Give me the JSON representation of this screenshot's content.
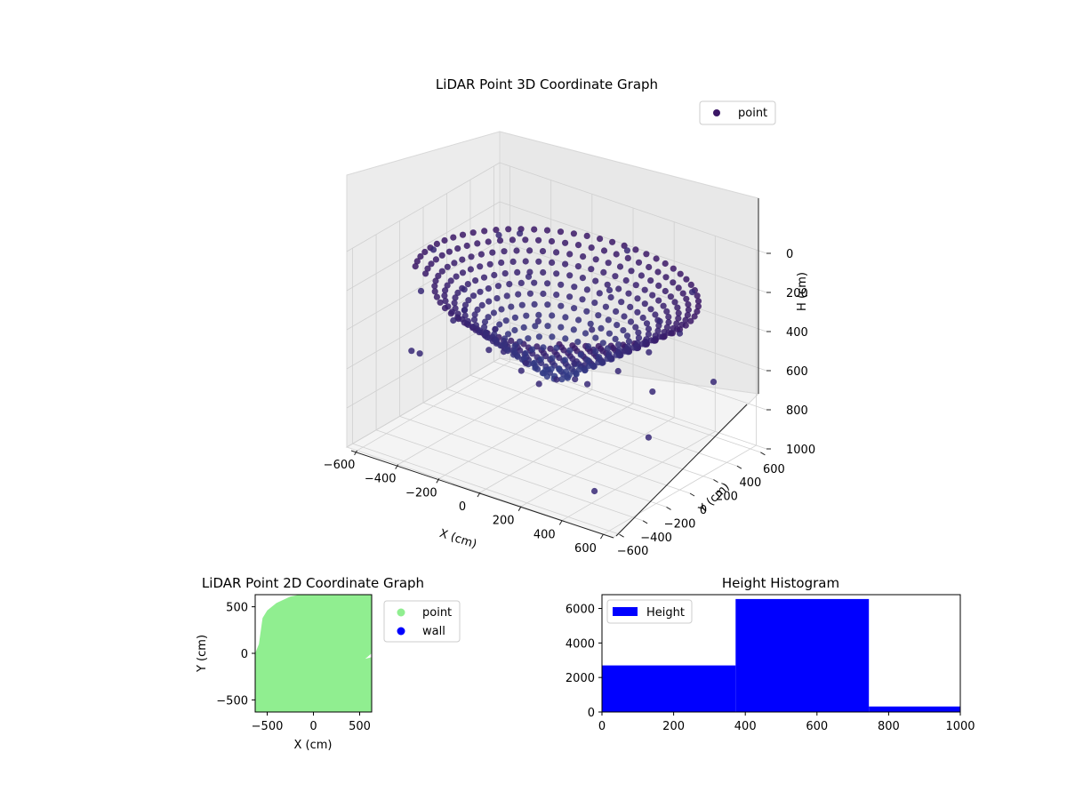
{
  "chart_data": [
    {
      "type": "scatter",
      "title": "LiDAR Point 3D Coordinate Graph",
      "xlabel": "X (cm)",
      "ylabel": "Y (cm)",
      "zlabel": "H (cm)",
      "xlim": [
        -650,
        650
      ],
      "ylim": [
        -650,
        650
      ],
      "zlim": [
        0,
        1000
      ],
      "z_inverted": true,
      "x_ticks": [
        "−600",
        "−400",
        "−200",
        "0",
        "200",
        "400",
        "600"
      ],
      "y_ticks": [
        "−600",
        "−400",
        "−200",
        "0",
        "200",
        "400",
        "600"
      ],
      "z_ticks": [
        "0",
        "200",
        "400",
        "600",
        "800",
        "1000"
      ],
      "legend": {
        "position": "top-right",
        "entries": [
          "point"
        ]
      },
      "grid": true,
      "colormap": "viridis-dark",
      "series": [
        {
          "name": "point",
          "color": "#3b1766",
          "shape": "bowl-shaped point cloud with outer ring and scattered outliers",
          "points_xyh": [
            [
              600,
              0,
              200
            ],
            [
              420,
              420,
              200
            ],
            [
              0,
              600,
              200
            ],
            [
              -420,
              420,
              200
            ],
            [
              -600,
              0,
              200
            ],
            [
              -420,
              -420,
              200
            ],
            [
              0,
              -600,
              200
            ],
            [
              420,
              -420,
              200
            ],
            [
              450,
              0,
              350
            ],
            [
              320,
              320,
              350
            ],
            [
              0,
              450,
              350
            ],
            [
              -320,
              320,
              350
            ],
            [
              -450,
              0,
              350
            ],
            [
              -320,
              -320,
              350
            ],
            [
              0,
              -450,
              350
            ],
            [
              320,
              -320,
              350
            ],
            [
              300,
              0,
              500
            ],
            [
              210,
              210,
              500
            ],
            [
              0,
              300,
              500
            ],
            [
              -210,
              210,
              500
            ],
            [
              -300,
              0,
              500
            ],
            [
              -210,
              -210,
              500
            ],
            [
              0,
              -300,
              500
            ],
            [
              210,
              -210,
              500
            ],
            [
              150,
              0,
              620
            ],
            [
              0,
              150,
              620
            ],
            [
              -150,
              0,
              620
            ],
            [
              0,
              -150,
              620
            ],
            [
              0,
              0,
              650
            ],
            [
              620,
              -300,
              620
            ],
            [
              -620,
              300,
              620
            ],
            [
              500,
              -550,
              850
            ],
            [
              -580,
              520,
              300
            ],
            [
              650,
              200,
              500
            ],
            [
              -650,
              -100,
              700
            ],
            [
              100,
              640,
              900
            ],
            [
              -300,
              -640,
              400
            ]
          ]
        }
      ]
    },
    {
      "type": "scatter",
      "title": "LiDAR Point 2D Coordinate Graph",
      "xlabel": "X (cm)",
      "ylabel": "Y (cm)",
      "xlim": [
        -630,
        630
      ],
      "ylim": [
        -630,
        630
      ],
      "x_ticks": [
        -500,
        0,
        500
      ],
      "y_ticks": [
        -500,
        0,
        500
      ],
      "legend": {
        "position": "outside-right",
        "entries": [
          "point",
          "wall"
        ]
      },
      "series": [
        {
          "name": "point",
          "color": "#90ee90",
          "outline_xy": [
            [
              -630,
              -630
            ],
            [
              -630,
              0
            ],
            [
              -590,
              100
            ],
            [
              -550,
              380
            ],
            [
              -500,
              460
            ],
            [
              -400,
              540
            ],
            [
              -250,
              610
            ],
            [
              -150,
              630
            ],
            [
              630,
              630
            ],
            [
              630,
              0
            ],
            [
              560,
              -60
            ],
            [
              630,
              -40
            ],
            [
              630,
              -630
            ]
          ]
        },
        {
          "name": "wall",
          "color": "#0000ff",
          "points_xy": []
        }
      ]
    },
    {
      "type": "bar",
      "title": "Height Histogram",
      "xlim": [
        0,
        1000
      ],
      "ylim": [
        0,
        6800
      ],
      "x_ticks": [
        0,
        200,
        400,
        600,
        800,
        1000
      ],
      "y_ticks": [
        0,
        2000,
        4000,
        6000
      ],
      "legend": {
        "position": "top-left",
        "entries": [
          "Height"
        ]
      },
      "series": [
        {
          "name": "Height",
          "color": "#0000ff",
          "bins": [
            {
              "from": 0,
              "to": 373,
              "count": 2700
            },
            {
              "from": 373,
              "to": 745,
              "count": 6550
            },
            {
              "from": 745,
              "to": 1000,
              "count": 320
            }
          ]
        }
      ]
    }
  ]
}
